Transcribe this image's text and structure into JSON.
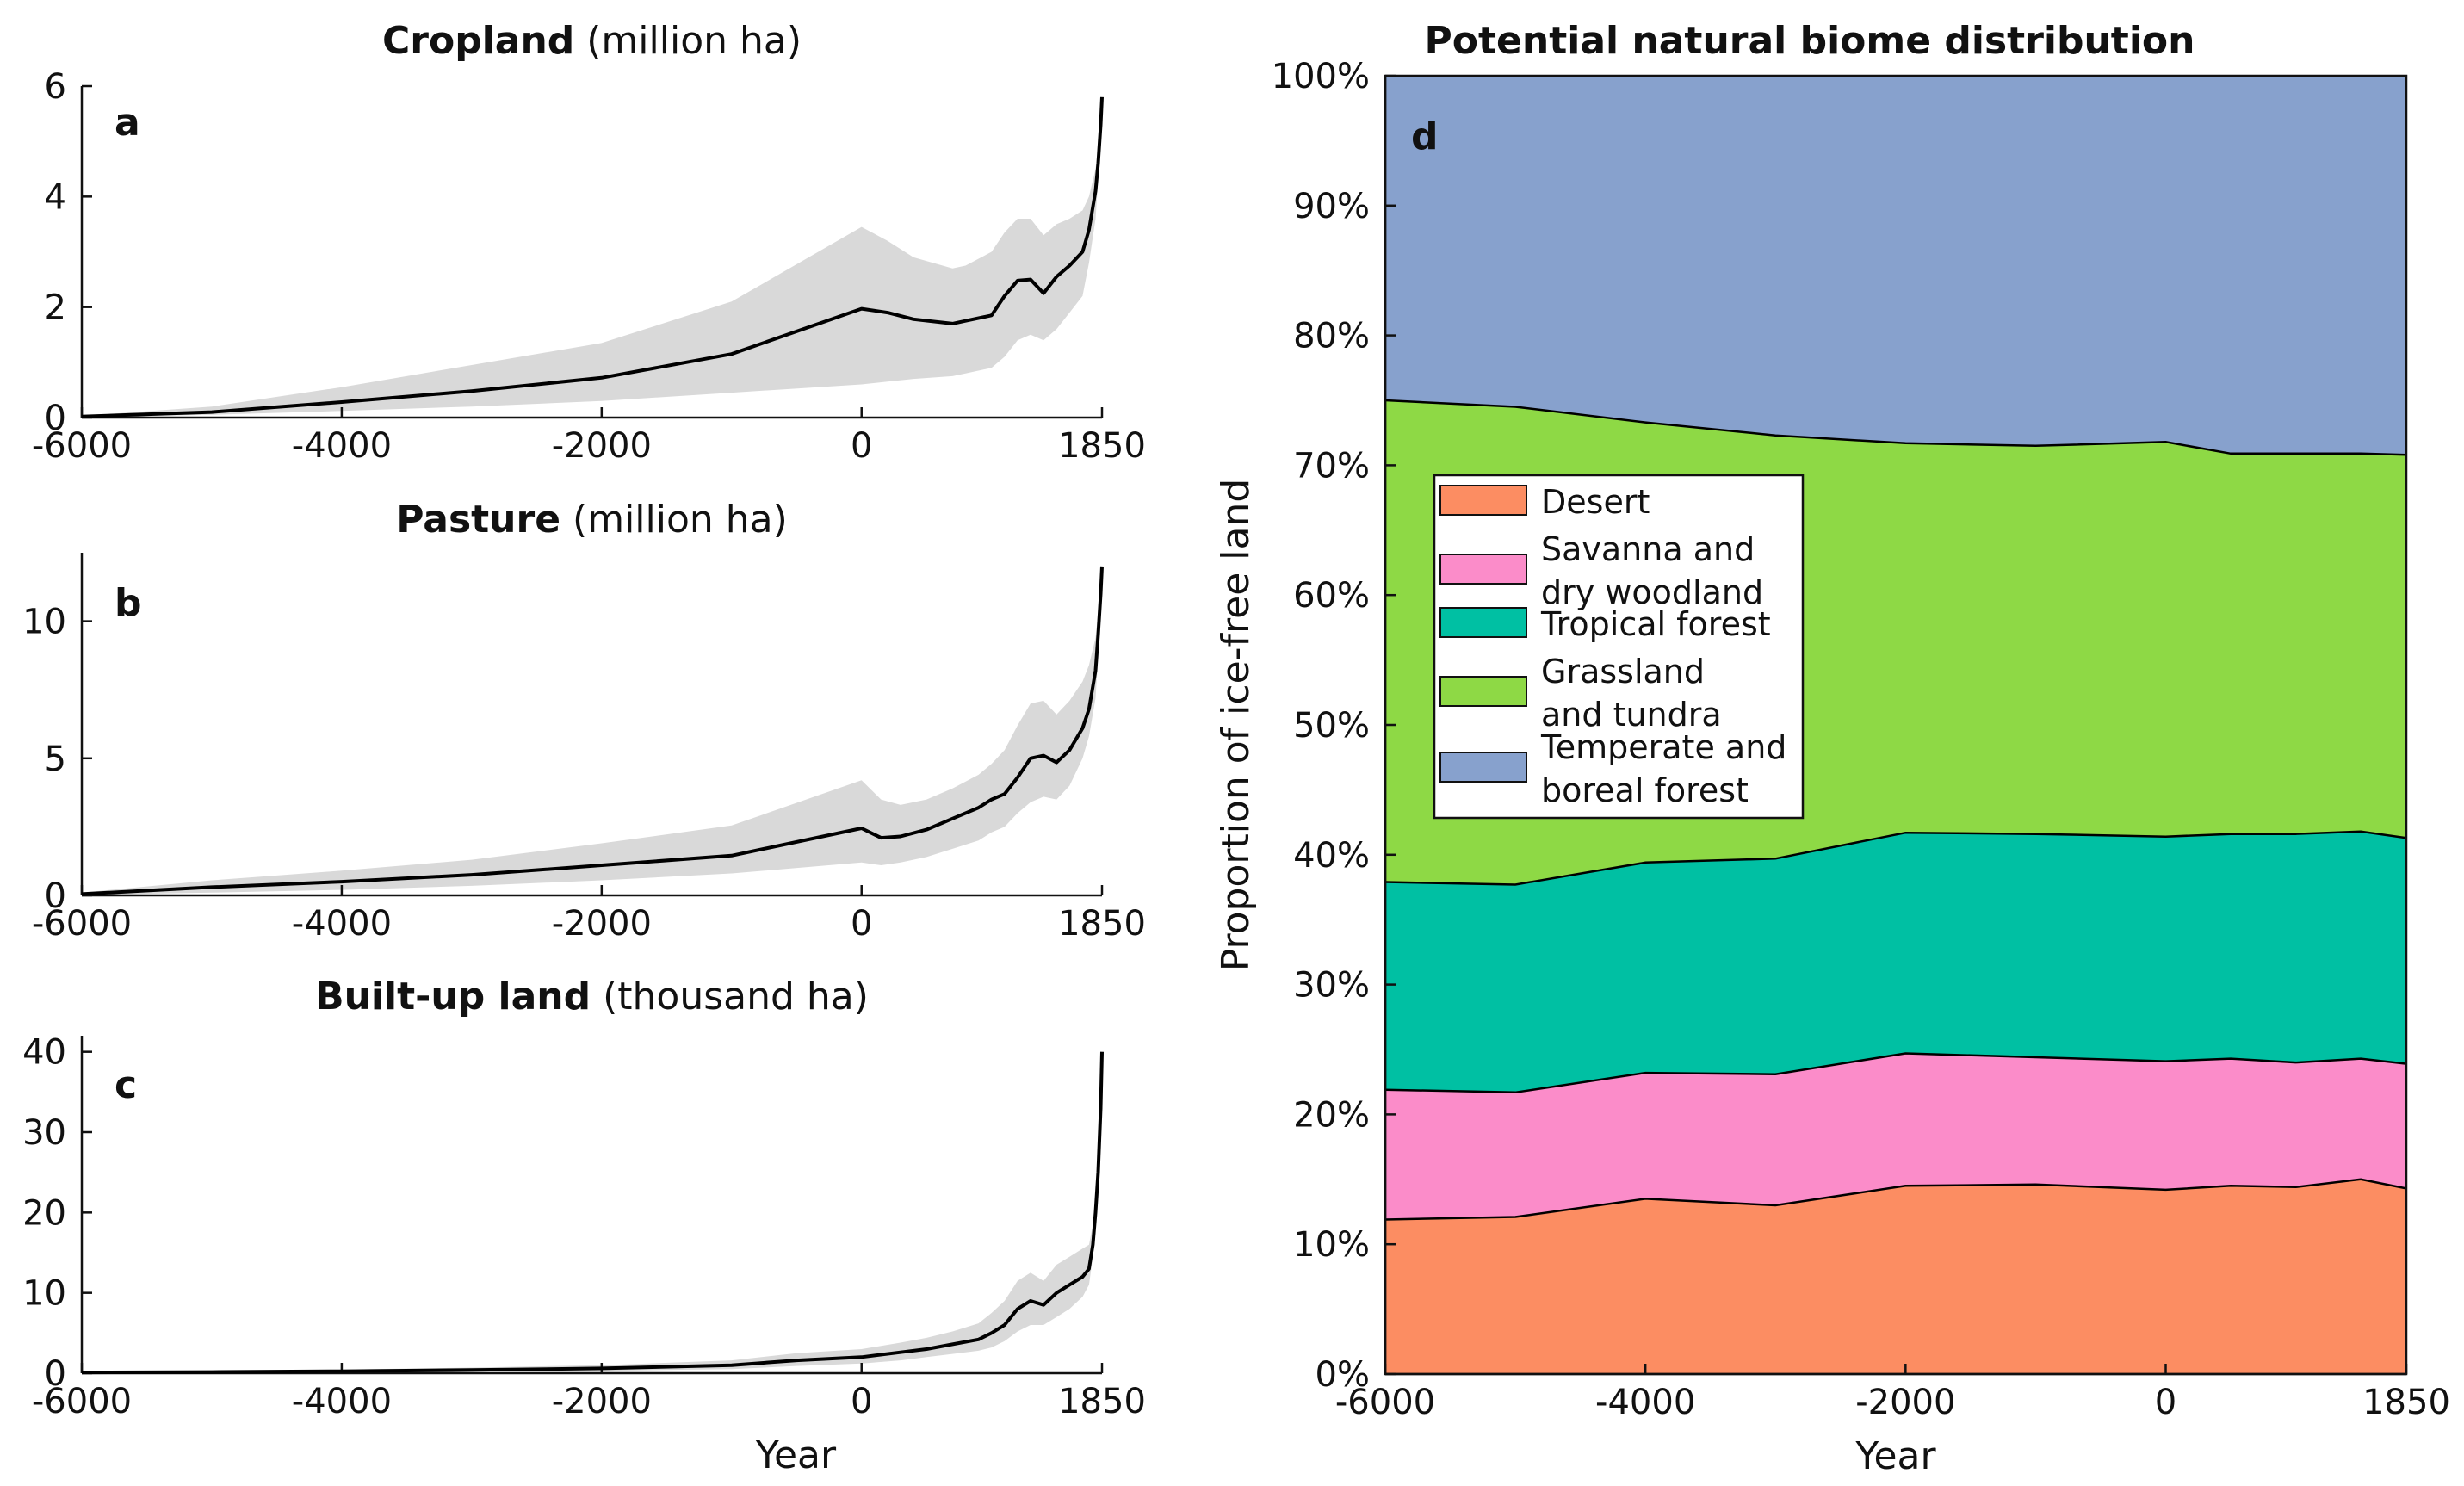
{
  "chart_data": [
    {
      "type": "line",
      "panel_letter": "a",
      "title": "Cropland",
      "title_unit": "(million ha)",
      "xlabel": "",
      "ylabel": "",
      "xlim": [
        -6000,
        1850
      ],
      "ylim": [
        0,
        6
      ],
      "x_ticks": [
        -6000,
        -4000,
        -2000,
        0,
        1850
      ],
      "x_tick_labels": [
        "-6000",
        "-4000",
        "-2000",
        "0",
        "1850"
      ],
      "y_ticks": [
        0,
        2,
        4,
        6
      ],
      "y_tick_labels": [
        "0",
        "2",
        "4",
        "6"
      ],
      "series": [
        {
          "name": "median",
          "x": [
            -6000,
            -5000,
            -4000,
            -3000,
            -2000,
            -1000,
            0,
            200,
            400,
            700,
            800,
            1000,
            1100,
            1200,
            1300,
            1400,
            1500,
            1600,
            1700,
            1750,
            1800,
            1820,
            1840,
            1850
          ],
          "values": [
            0.02,
            0.1,
            0.28,
            0.48,
            0.72,
            1.15,
            1.97,
            1.9,
            1.78,
            1.7,
            1.75,
            1.85,
            2.2,
            2.48,
            2.5,
            2.25,
            2.55,
            2.75,
            3.0,
            3.4,
            4.1,
            4.6,
            5.3,
            5.8
          ]
        }
      ],
      "band": {
        "x": [
          -6000,
          -5000,
          -4000,
          -3000,
          -2000,
          -1000,
          0,
          200,
          400,
          700,
          800,
          1000,
          1100,
          1200,
          1300,
          1400,
          1500,
          1600,
          1700,
          1750,
          1800,
          1820,
          1840,
          1850
        ],
        "low": [
          0.01,
          0.05,
          0.12,
          0.2,
          0.3,
          0.45,
          0.6,
          0.65,
          0.7,
          0.75,
          0.8,
          0.9,
          1.1,
          1.4,
          1.5,
          1.4,
          1.6,
          1.9,
          2.2,
          2.8,
          3.6,
          4.3,
          5.1,
          5.8
        ],
        "high": [
          0.03,
          0.2,
          0.55,
          0.95,
          1.35,
          2.1,
          3.45,
          3.2,
          2.9,
          2.7,
          2.75,
          3.0,
          3.35,
          3.6,
          3.6,
          3.3,
          3.5,
          3.6,
          3.75,
          4.0,
          4.5,
          4.9,
          5.5,
          5.8
        ]
      }
    },
    {
      "type": "line",
      "panel_letter": "b",
      "title": "Pasture",
      "title_unit": "(million ha)",
      "xlabel": "",
      "ylabel": "",
      "xlim": [
        -6000,
        1850
      ],
      "ylim": [
        0,
        12.5
      ],
      "x_ticks": [
        -6000,
        -4000,
        -2000,
        0,
        1850
      ],
      "x_tick_labels": [
        "-6000",
        "-4000",
        "-2000",
        "0",
        "1850"
      ],
      "y_ticks": [
        0,
        5,
        10
      ],
      "y_tick_labels": [
        "0",
        "5",
        "10"
      ],
      "series": [
        {
          "name": "median",
          "x": [
            -6000,
            -5000,
            -4000,
            -3000,
            -2000,
            -1000,
            0,
            150,
            300,
            500,
            700,
            900,
            1000,
            1100,
            1200,
            1300,
            1400,
            1500,
            1600,
            1700,
            1750,
            1800,
            1820,
            1840,
            1850
          ],
          "values": [
            0.05,
            0.3,
            0.5,
            0.75,
            1.1,
            1.45,
            2.45,
            2.1,
            2.15,
            2.4,
            2.8,
            3.2,
            3.5,
            3.7,
            4.3,
            5.0,
            5.1,
            4.85,
            5.3,
            6.1,
            6.8,
            8.2,
            9.5,
            11.0,
            12.0
          ]
        }
      ],
      "band": {
        "x": [
          -6000,
          -5000,
          -4000,
          -3000,
          -2000,
          -1000,
          0,
          150,
          300,
          500,
          700,
          900,
          1000,
          1100,
          1200,
          1300,
          1400,
          1500,
          1600,
          1700,
          1750,
          1800,
          1820,
          1840,
          1850
        ],
        "low": [
          0.02,
          0.1,
          0.2,
          0.35,
          0.55,
          0.8,
          1.2,
          1.1,
          1.2,
          1.4,
          1.7,
          2.0,
          2.3,
          2.5,
          3.0,
          3.4,
          3.6,
          3.5,
          4.0,
          5.0,
          5.8,
          7.2,
          8.7,
          10.5,
          12.0
        ],
        "high": [
          0.1,
          0.55,
          0.9,
          1.3,
          1.9,
          2.55,
          4.2,
          3.5,
          3.3,
          3.5,
          3.9,
          4.4,
          4.8,
          5.3,
          6.2,
          7.0,
          7.1,
          6.6,
          7.1,
          7.8,
          8.4,
          9.4,
          10.3,
          11.4,
          12.0
        ]
      }
    },
    {
      "type": "line",
      "panel_letter": "c",
      "title": "Built-up land",
      "title_unit": "(thousand ha)",
      "xlabel": "Year",
      "ylabel": "",
      "xlim": [
        -6000,
        1850
      ],
      "ylim": [
        0,
        42
      ],
      "x_ticks": [
        -6000,
        -4000,
        -2000,
        0,
        1850
      ],
      "x_tick_labels": [
        "-6000",
        "-4000",
        "-2000",
        "0",
        "1850"
      ],
      "y_ticks": [
        0,
        10,
        20,
        30,
        40
      ],
      "y_tick_labels": [
        "0",
        "10",
        "20",
        "30",
        "40"
      ],
      "series": [
        {
          "name": "median",
          "x": [
            -6000,
            -5000,
            -4000,
            -3000,
            -2000,
            -1000,
            -500,
            0,
            300,
            500,
            700,
            900,
            1000,
            1100,
            1200,
            1300,
            1400,
            1500,
            1600,
            1700,
            1750,
            1780,
            1800,
            1820,
            1840,
            1850
          ],
          "values": [
            0.1,
            0.15,
            0.25,
            0.4,
            0.6,
            1.0,
            1.6,
            2.0,
            2.6,
            3.0,
            3.6,
            4.2,
            5.0,
            6.0,
            8.0,
            9.0,
            8.5,
            10.0,
            11.0,
            12.0,
            13.0,
            16.0,
            20.0,
            25.0,
            33.0,
            40.0
          ]
        }
      ],
      "band": {
        "x": [
          -6000,
          -5000,
          -4000,
          -3000,
          -2000,
          -1000,
          -500,
          0,
          300,
          500,
          700,
          900,
          1000,
          1100,
          1200,
          1300,
          1400,
          1500,
          1600,
          1700,
          1750,
          1780,
          1800,
          1820,
          1840,
          1850
        ],
        "low": [
          0.05,
          0.08,
          0.12,
          0.2,
          0.3,
          0.5,
          0.9,
          1.2,
          1.6,
          2.0,
          2.4,
          2.8,
          3.2,
          4.0,
          5.2,
          6.0,
          6.0,
          7.0,
          8.0,
          9.5,
          11.0,
          14.5,
          19.0,
          24.0,
          32.0,
          40.0
        ],
        "high": [
          0.2,
          0.3,
          0.45,
          0.7,
          1.0,
          1.6,
          2.5,
          3.0,
          3.8,
          4.4,
          5.2,
          6.2,
          7.5,
          9.0,
          11.5,
          12.5,
          11.5,
          13.5,
          14.5,
          15.5,
          16.0,
          18.5,
          22.0,
          27.0,
          34.0,
          40.0
        ]
      }
    },
    {
      "type": "area",
      "stacked": true,
      "panel_letter": "d",
      "title": "Potential natural biome distribution",
      "xlabel": "Year",
      "ylabel": "Proportion of ice-free land",
      "xlim": [
        -6000,
        1850
      ],
      "ylim": [
        0,
        100
      ],
      "x_ticks": [
        -6000,
        -4000,
        -2000,
        0,
        1850
      ],
      "x_tick_labels": [
        "-6000",
        "-4000",
        "-2000",
        "0",
        "1850"
      ],
      "y_ticks": [
        0,
        10,
        20,
        30,
        40,
        50,
        60,
        70,
        80,
        90,
        100
      ],
      "y_tick_labels": [
        "0%",
        "10%",
        "20%",
        "30%",
        "40%",
        "50%",
        "60%",
        "70%",
        "80%",
        "90%",
        "100%"
      ],
      "legend_position": "left",
      "x": [
        -6000,
        -5000,
        -4000,
        -3000,
        -2000,
        -1000,
        0,
        500,
        1000,
        1500,
        1850
      ],
      "series": [
        {
          "name": "Desert",
          "legend_lines": [
            "Desert"
          ],
          "color": "#fc8d62",
          "values": [
            11.9,
            12.1,
            13.5,
            13.0,
            14.5,
            14.6,
            14.2,
            14.5,
            14.4,
            15.0,
            14.3
          ]
        },
        {
          "name": "Savanna and dry woodland",
          "legend_lines": [
            "Savanna and",
            "dry woodland"
          ],
          "color": "#fb8cc9",
          "values": [
            10.0,
            9.6,
            9.7,
            10.1,
            10.2,
            9.8,
            9.9,
            9.8,
            9.6,
            9.3,
            9.6
          ]
        },
        {
          "name": "Tropical forest",
          "legend_lines": [
            "Tropical forest"
          ],
          "color": "#00c0a3",
          "values": [
            16.0,
            16.0,
            16.2,
            16.6,
            17.0,
            17.2,
            17.3,
            17.3,
            17.6,
            17.5,
            17.4
          ]
        },
        {
          "name": "Grassland and tundra",
          "legend_lines": [
            "Grassland",
            "and tundra"
          ],
          "color": "#8ed945",
          "values": [
            37.1,
            36.8,
            33.9,
            32.6,
            30.0,
            29.9,
            30.4,
            29.3,
            29.3,
            29.1,
            29.5
          ]
        },
        {
          "name": "Temperate and boreal forest",
          "legend_lines": [
            "Temperate and",
            "boreal forest"
          ],
          "color": "#87a1cd",
          "values": [
            25.0,
            25.5,
            26.7,
            27.7,
            28.3,
            28.5,
            28.2,
            29.1,
            29.1,
            29.1,
            29.2
          ]
        }
      ]
    }
  ]
}
